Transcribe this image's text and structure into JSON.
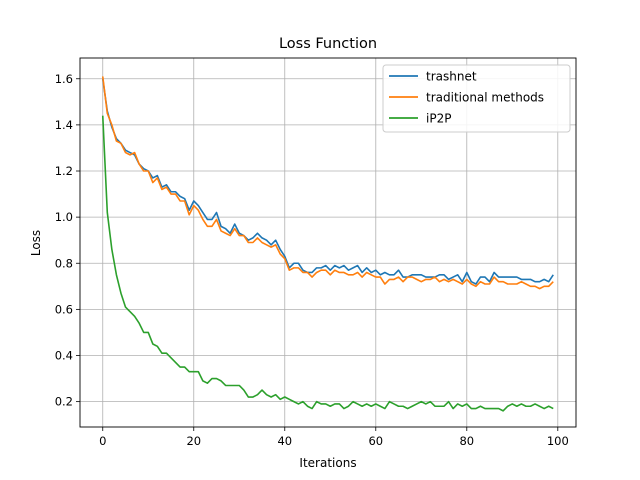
{
  "chart_data": {
    "type": "line",
    "title": "Loss Function",
    "xlabel": "Iterations",
    "ylabel": "Loss",
    "xlim": [
      -5,
      104
    ],
    "ylim": [
      0.09,
      1.69
    ],
    "x_ticks": [
      0,
      20,
      40,
      60,
      80,
      100
    ],
    "y_ticks": [
      0.2,
      0.4,
      0.6,
      0.8,
      1.0,
      1.2,
      1.4,
      1.6
    ],
    "x_tick_labels": [
      "0",
      "20",
      "40",
      "60",
      "80",
      "100"
    ],
    "y_tick_labels": [
      "0.2",
      "0.4",
      "0.6",
      "0.8",
      "1.0",
      "1.2",
      "1.4",
      "1.6"
    ],
    "grid": true,
    "legend_position": "top-right",
    "series": [
      {
        "name": "trashnet",
        "color": "#1f77b4",
        "values": [
          1.6,
          1.46,
          1.39,
          1.34,
          1.32,
          1.29,
          1.28,
          1.27,
          1.23,
          1.21,
          1.2,
          1.17,
          1.18,
          1.13,
          1.14,
          1.11,
          1.11,
          1.09,
          1.08,
          1.03,
          1.07,
          1.05,
          1.02,
          0.99,
          0.99,
          1.02,
          0.96,
          0.95,
          0.93,
          0.97,
          0.93,
          0.92,
          0.9,
          0.91,
          0.93,
          0.91,
          0.9,
          0.88,
          0.9,
          0.86,
          0.83,
          0.78,
          0.8,
          0.8,
          0.77,
          0.76,
          0.76,
          0.78,
          0.78,
          0.79,
          0.77,
          0.79,
          0.78,
          0.79,
          0.77,
          0.78,
          0.79,
          0.76,
          0.78,
          0.76,
          0.77,
          0.75,
          0.76,
          0.75,
          0.75,
          0.77,
          0.74,
          0.74,
          0.75,
          0.75,
          0.75,
          0.74,
          0.74,
          0.74,
          0.75,
          0.75,
          0.73,
          0.74,
          0.75,
          0.72,
          0.76,
          0.72,
          0.71,
          0.74,
          0.74,
          0.72,
          0.76,
          0.74,
          0.74,
          0.74,
          0.74,
          0.74,
          0.73,
          0.73,
          0.73,
          0.72,
          0.72,
          0.73,
          0.72,
          0.75
        ]
      },
      {
        "name": "traditional methods",
        "color": "#ff7f0e",
        "values": [
          1.61,
          1.45,
          1.4,
          1.33,
          1.32,
          1.28,
          1.27,
          1.28,
          1.23,
          1.2,
          1.2,
          1.15,
          1.17,
          1.12,
          1.13,
          1.1,
          1.1,
          1.07,
          1.07,
          1.01,
          1.05,
          1.03,
          0.99,
          0.96,
          0.96,
          0.99,
          0.94,
          0.93,
          0.92,
          0.95,
          0.92,
          0.92,
          0.89,
          0.89,
          0.91,
          0.89,
          0.88,
          0.87,
          0.88,
          0.84,
          0.82,
          0.77,
          0.78,
          0.78,
          0.76,
          0.76,
          0.74,
          0.76,
          0.77,
          0.77,
          0.75,
          0.77,
          0.76,
          0.76,
          0.75,
          0.75,
          0.76,
          0.74,
          0.76,
          0.75,
          0.74,
          0.74,
          0.71,
          0.73,
          0.73,
          0.74,
          0.72,
          0.74,
          0.74,
          0.73,
          0.72,
          0.73,
          0.73,
          0.74,
          0.72,
          0.73,
          0.72,
          0.73,
          0.72,
          0.71,
          0.73,
          0.71,
          0.7,
          0.72,
          0.71,
          0.71,
          0.74,
          0.72,
          0.72,
          0.71,
          0.71,
          0.71,
          0.72,
          0.71,
          0.7,
          0.7,
          0.69,
          0.7,
          0.7,
          0.72
        ]
      },
      {
        "name": "iP2P",
        "color": "#2ca02c",
        "values": [
          1.44,
          1.02,
          0.86,
          0.75,
          0.67,
          0.61,
          0.59,
          0.57,
          0.54,
          0.5,
          0.5,
          0.45,
          0.44,
          0.41,
          0.41,
          0.39,
          0.37,
          0.35,
          0.35,
          0.33,
          0.33,
          0.33,
          0.29,
          0.28,
          0.3,
          0.3,
          0.29,
          0.27,
          0.27,
          0.27,
          0.27,
          0.25,
          0.22,
          0.22,
          0.23,
          0.25,
          0.23,
          0.22,
          0.23,
          0.21,
          0.22,
          0.21,
          0.2,
          0.19,
          0.2,
          0.18,
          0.17,
          0.2,
          0.19,
          0.19,
          0.18,
          0.19,
          0.19,
          0.17,
          0.18,
          0.2,
          0.19,
          0.18,
          0.19,
          0.18,
          0.19,
          0.18,
          0.17,
          0.2,
          0.19,
          0.18,
          0.18,
          0.17,
          0.18,
          0.19,
          0.2,
          0.19,
          0.2,
          0.18,
          0.18,
          0.18,
          0.2,
          0.17,
          0.19,
          0.18,
          0.19,
          0.17,
          0.17,
          0.18,
          0.17,
          0.17,
          0.17,
          0.17,
          0.16,
          0.18,
          0.19,
          0.18,
          0.19,
          0.18,
          0.18,
          0.19,
          0.18,
          0.17,
          0.18,
          0.17
        ]
      }
    ]
  }
}
